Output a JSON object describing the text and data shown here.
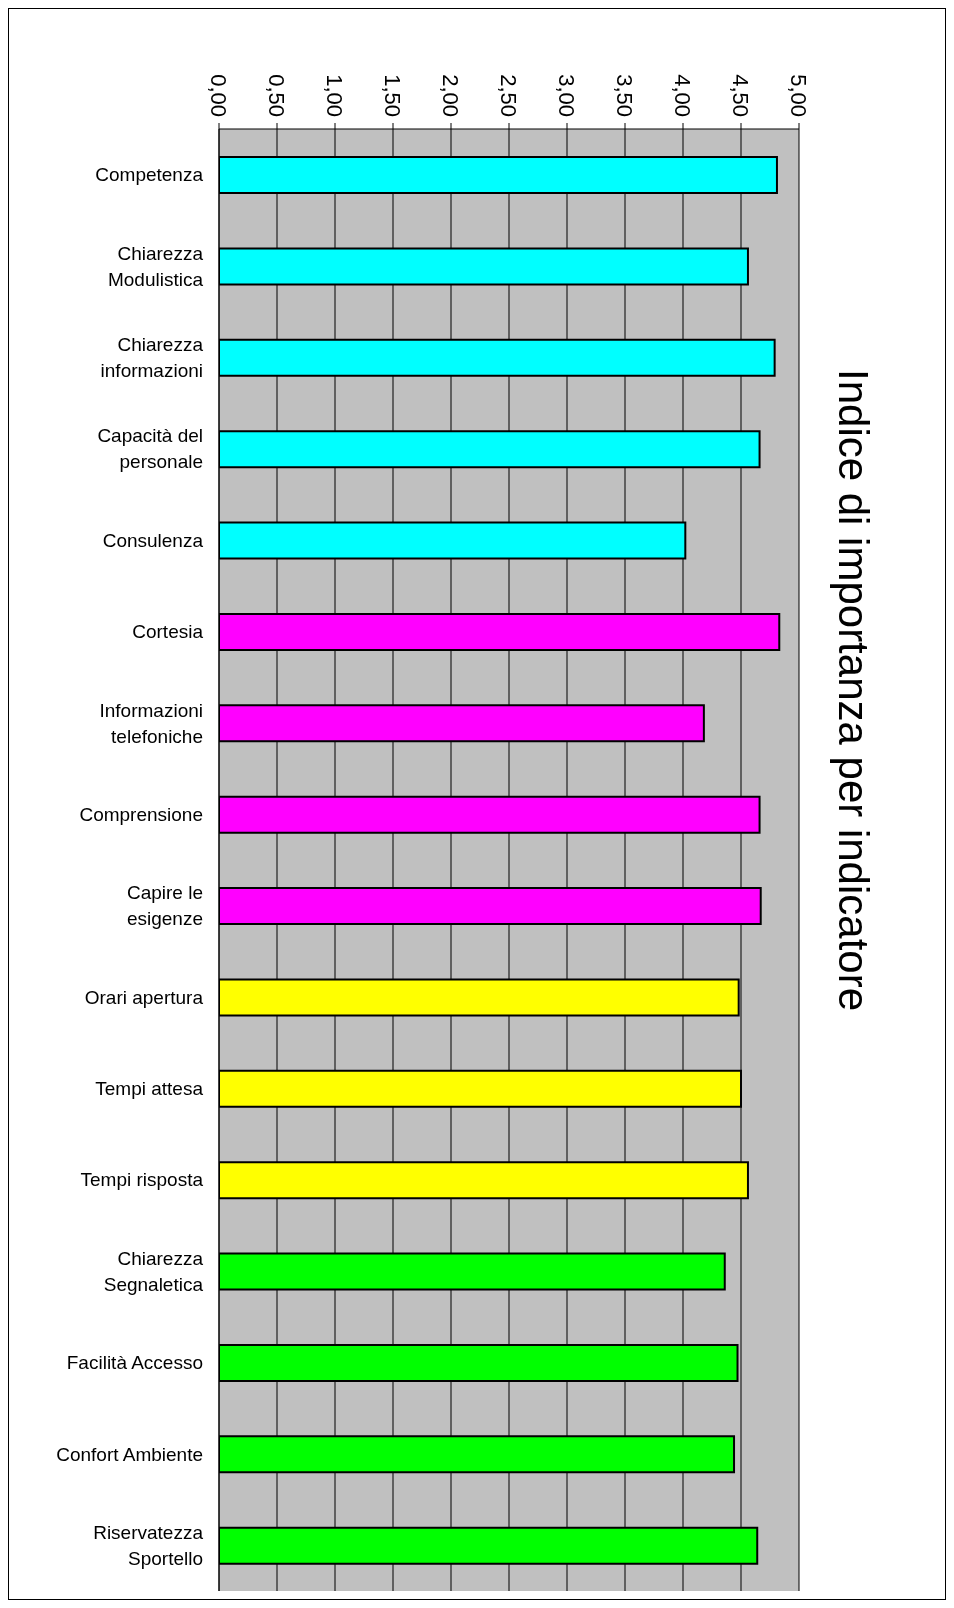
{
  "chart_data": {
    "type": "bar",
    "orientation": "horizontal",
    "title": "Indice di importanza per indicatore",
    "categories": [
      "Competenza",
      "Chiarezza Modulistica",
      "Chiarezza informazioni",
      "Capacità del personale",
      "Consulenza",
      "Cortesia",
      "Informazioni telefoniche",
      "Comprensione",
      "Capire le esigenze",
      "Orari apertura",
      "Tempi attesa",
      "Tempi risposta",
      "Chiarezza Segnaletica",
      "Facilità Accesso",
      "Confort Ambiente",
      "Riservatezza Sportello"
    ],
    "values": [
      4.81,
      4.56,
      4.79,
      4.66,
      4.02,
      4.83,
      4.18,
      4.66,
      4.67,
      4.48,
      4.5,
      4.56,
      4.36,
      4.47,
      4.44,
      4.64
    ],
    "colors": [
      "#00ffff",
      "#00ffff",
      "#00ffff",
      "#00ffff",
      "#00ffff",
      "#ff00ff",
      "#ff00ff",
      "#ff00ff",
      "#ff00ff",
      "#ffff00",
      "#ffff00",
      "#ffff00",
      "#00ff00",
      "#00ff00",
      "#00ff00",
      "#00ff00"
    ],
    "xlim": [
      0,
      5
    ],
    "xticks": [
      {
        "value": 0,
        "label": "0,00"
      },
      {
        "value": 0.5,
        "label": "0,50"
      },
      {
        "value": 1,
        "label": "1,00"
      },
      {
        "value": 1.5,
        "label": "1,50"
      },
      {
        "value": 2,
        "label": "2,00"
      },
      {
        "value": 2.5,
        "label": "2,50"
      },
      {
        "value": 3,
        "label": "3,00"
      },
      {
        "value": 3.5,
        "label": "3,50"
      },
      {
        "value": 4,
        "label": "4,00"
      },
      {
        "value": 4.5,
        "label": "4,50"
      },
      {
        "value": 5,
        "label": "5,00"
      }
    ],
    "grid": "x"
  }
}
